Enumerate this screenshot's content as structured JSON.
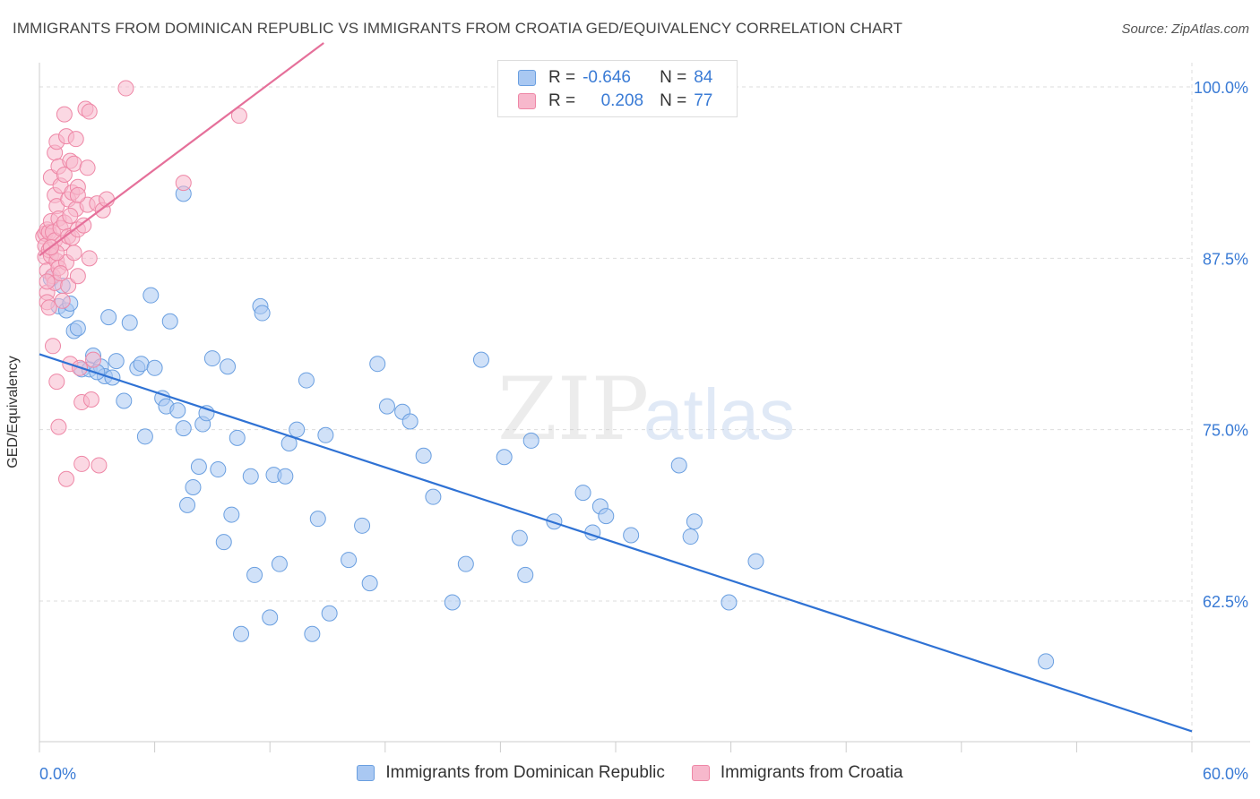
{
  "header": {
    "title": "IMMIGRANTS FROM DOMINICAN REPUBLIC VS IMMIGRANTS FROM CROATIA GED/EQUIVALENCY CORRELATION CHART",
    "source": "Source: ZipAtlas.com"
  },
  "watermark": {
    "zip": "ZIP",
    "atlas": "atlas"
  },
  "legend": {
    "r_label": "R =",
    "n_label": "N =",
    "rows": [
      {
        "r": "-0.646",
        "n": "84"
      },
      {
        "r": "0.208",
        "n": "77"
      }
    ]
  },
  "colors": {
    "blue_fill": "#a9c8f2",
    "blue_stroke": "#6a9fe0",
    "blue_line": "#2f72d4",
    "pink_fill": "#f7b8cc",
    "pink_stroke": "#ee87a6",
    "pink_line": "#e5709a",
    "tick_label": "#3a7bd5",
    "grid": "#dddddd"
  },
  "chart_data": {
    "type": "scatter",
    "xlabel": "",
    "ylabel": "GED/Equivalency",
    "xlim": [
      0,
      60
    ],
    "ylim": [
      52,
      102
    ],
    "x_tick_labels": [
      "0.0%",
      "60.0%"
    ],
    "y_ticks": [
      {
        "value": 100,
        "label": "100.0%"
      },
      {
        "value": 87.5,
        "label": "87.5%"
      },
      {
        "value": 75,
        "label": "75.0%"
      },
      {
        "value": 62.5,
        "label": "62.5%"
      }
    ],
    "grid": true,
    "legend_position": "bottom",
    "series": [
      {
        "name": "Immigrants from Dominican Republic",
        "r": -0.646,
        "n": 84,
        "trend": {
          "x": [
            0,
            60
          ],
          "y": [
            80.5,
            53.0
          ]
        },
        "points": [
          [
            0.6,
            86
          ],
          [
            1.0,
            84
          ],
          [
            1.2,
            85.5
          ],
          [
            1.4,
            83.7
          ],
          [
            1.6,
            84.2
          ],
          [
            1.8,
            82.2
          ],
          [
            2.0,
            82.4
          ],
          [
            2.2,
            79.4
          ],
          [
            2.6,
            79.4
          ],
          [
            2.8,
            80.4
          ],
          [
            3.2,
            79.6
          ],
          [
            3.4,
            78.9
          ],
          [
            3.8,
            78.8
          ],
          [
            3.6,
            83.2
          ],
          [
            4.0,
            80
          ],
          [
            4.4,
            77.1
          ],
          [
            4.7,
            82.8
          ],
          [
            5.1,
            79.5
          ],
          [
            5.3,
            79.8
          ],
          [
            5.5,
            74.5
          ],
          [
            5.8,
            84.8
          ],
          [
            6.0,
            79.5
          ],
          [
            6.4,
            77.3
          ],
          [
            6.6,
            76.7
          ],
          [
            6.8,
            82.9
          ],
          [
            7.2,
            76.4
          ],
          [
            7.5,
            75.1
          ],
          [
            7.7,
            69.5
          ],
          [
            8.0,
            70.8
          ],
          [
            8.3,
            72.3
          ],
          [
            8.5,
            75.4
          ],
          [
            8.7,
            76.2
          ],
          [
            9.0,
            80.2
          ],
          [
            9.3,
            72.1
          ],
          [
            9.6,
            66.8
          ],
          [
            9.8,
            79.6
          ],
          [
            10.0,
            68.8
          ],
          [
            10.3,
            74.4
          ],
          [
            10.5,
            60.1
          ],
          [
            11.0,
            71.6
          ],
          [
            11.2,
            64.4
          ],
          [
            11.5,
            84
          ],
          [
            11.6,
            83.5
          ],
          [
            12.0,
            61.3
          ],
          [
            12.2,
            71.7
          ],
          [
            12.5,
            65.2
          ],
          [
            12.8,
            71.6
          ],
          [
            13.0,
            74
          ],
          [
            13.4,
            75
          ],
          [
            13.9,
            78.6
          ],
          [
            14.2,
            60.1
          ],
          [
            14.5,
            68.5
          ],
          [
            14.9,
            74.6
          ],
          [
            15.1,
            61.6
          ],
          [
            16.1,
            65.5
          ],
          [
            16.8,
            68
          ],
          [
            17.2,
            63.8
          ],
          [
            17.6,
            79.8
          ],
          [
            18.1,
            76.7
          ],
          [
            18.9,
            76.3
          ],
          [
            19.3,
            75.6
          ],
          [
            20.0,
            73.1
          ],
          [
            20.5,
            70.1
          ],
          [
            21.5,
            62.4
          ],
          [
            22.2,
            65.2
          ],
          [
            23.0,
            80.1
          ],
          [
            24.2,
            73.0
          ],
          [
            25.0,
            67.1
          ],
          [
            25.3,
            64.4
          ],
          [
            25.6,
            74.2
          ],
          [
            26.8,
            68.3
          ],
          [
            28.3,
            70.4
          ],
          [
            28.8,
            67.5
          ],
          [
            29.2,
            69.4
          ],
          [
            29.5,
            68.7
          ],
          [
            30.8,
            67.3
          ],
          [
            33.3,
            72.4
          ],
          [
            33.9,
            67.2
          ],
          [
            34.1,
            68.3
          ],
          [
            35.9,
            62.4
          ],
          [
            37.3,
            65.4
          ],
          [
            52.4,
            58.1
          ],
          [
            7.5,
            92.2
          ],
          [
            3.0,
            79.2
          ]
        ]
      },
      {
        "name": "Immigrants from Croatia",
        "r": 0.208,
        "n": 77,
        "trend": {
          "x": [
            0,
            14.8
          ],
          "y": [
            87.7,
            103.2
          ]
        },
        "points": [
          [
            0.2,
            89.1
          ],
          [
            0.3,
            89.3
          ],
          [
            0.3,
            88.4
          ],
          [
            0.3,
            87.6
          ],
          [
            0.4,
            89.6
          ],
          [
            0.4,
            85
          ],
          [
            0.4,
            84.3
          ],
          [
            0.4,
            86.6
          ],
          [
            0.5,
            89.4
          ],
          [
            0.5,
            88.1
          ],
          [
            0.5,
            83.9
          ],
          [
            0.6,
            93.4
          ],
          [
            0.6,
            90.2
          ],
          [
            0.6,
            87.7
          ],
          [
            0.7,
            89.4
          ],
          [
            0.7,
            86.2
          ],
          [
            0.7,
            81.1
          ],
          [
            0.8,
            95.2
          ],
          [
            0.8,
            92.1
          ],
          [
            0.8,
            88.8
          ],
          [
            0.8,
            85.7
          ],
          [
            0.9,
            96
          ],
          [
            0.9,
            91.3
          ],
          [
            0.9,
            87.3
          ],
          [
            0.9,
            78.5
          ],
          [
            1.0,
            94.2
          ],
          [
            1.0,
            90.4
          ],
          [
            1.0,
            86.8
          ],
          [
            1.0,
            75.2
          ],
          [
            1.1,
            92.8
          ],
          [
            1.1,
            89.7
          ],
          [
            1.2,
            88.6
          ],
          [
            1.2,
            84.4
          ],
          [
            1.3,
            98
          ],
          [
            1.3,
            93.6
          ],
          [
            1.3,
            90.1
          ],
          [
            1.4,
            96.4
          ],
          [
            1.4,
            87.2
          ],
          [
            1.4,
            71.4
          ],
          [
            1.5,
            91.8
          ],
          [
            1.5,
            89.1
          ],
          [
            1.5,
            85.5
          ],
          [
            1.6,
            94.6
          ],
          [
            1.6,
            79.8
          ],
          [
            1.7,
            92.3
          ],
          [
            1.7,
            89
          ],
          [
            1.8,
            94.4
          ],
          [
            1.8,
            87.9
          ],
          [
            1.9,
            96.2
          ],
          [
            1.9,
            91.1
          ],
          [
            2.0,
            92.7
          ],
          [
            2.0,
            89.6
          ],
          [
            2.0,
            86.2
          ],
          [
            2.1,
            79.5
          ],
          [
            2.2,
            77
          ],
          [
            2.2,
            72.5
          ],
          [
            2.3,
            89.9
          ],
          [
            2.4,
            98.4
          ],
          [
            2.5,
            94.1
          ],
          [
            2.5,
            91.4
          ],
          [
            2.6,
            98.2
          ],
          [
            2.6,
            87.5
          ],
          [
            2.7,
            77.2
          ],
          [
            2.8,
            80.1
          ],
          [
            3.0,
            91.5
          ],
          [
            3.1,
            72.4
          ],
          [
            3.3,
            91
          ],
          [
            3.5,
            91.8
          ],
          [
            4.5,
            99.9
          ],
          [
            7.5,
            93
          ],
          [
            10.4,
            97.9
          ],
          [
            0.4,
            85.8
          ],
          [
            0.9,
            87.9
          ],
          [
            1.1,
            86.4
          ],
          [
            1.6,
            90.6
          ],
          [
            2.0,
            92.1
          ],
          [
            0.6,
            88.3
          ]
        ]
      }
    ]
  }
}
